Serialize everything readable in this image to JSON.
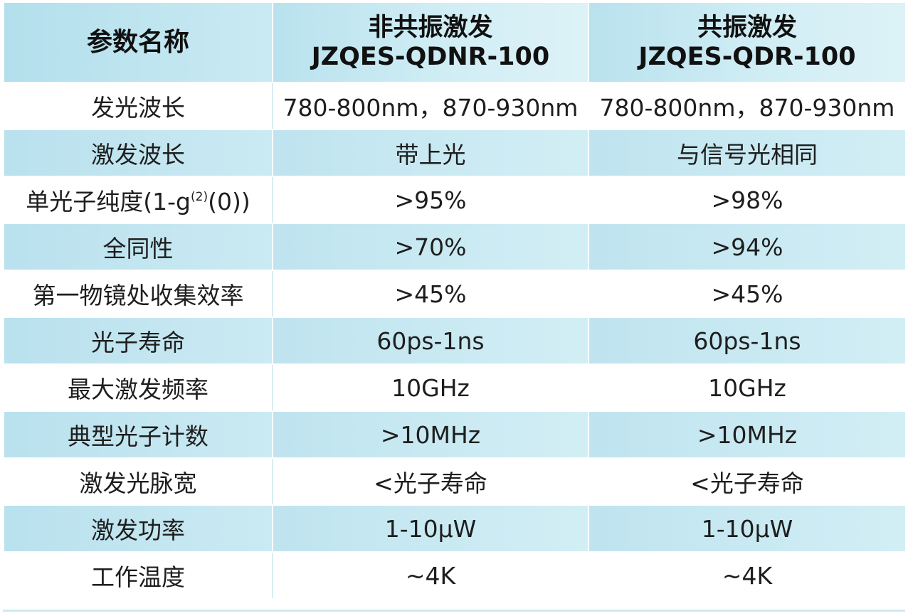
{
  "table": {
    "header": {
      "param_label": "参数名称",
      "col1_line1": "非共振激发",
      "col1_line2": "JZQES-QDNR-100",
      "col2_line1": "共振激发",
      "col2_line2": "JZQES-QDR-100"
    },
    "rows": [
      {
        "param": "发光波长",
        "v1": "780-800nm，870-930nm",
        "v2": "780-800nm，870-930nm"
      },
      {
        "param": "激发波长",
        "v1": "带上光",
        "v2": "与信号光相同"
      },
      {
        "param_pre": "单光子纯度(1-g",
        "param_sup": "(2)",
        "param_post": "(0))",
        "v1": ">95%",
        "v2": ">98%"
      },
      {
        "param": "全同性",
        "v1": ">70%",
        "v2": ">94%"
      },
      {
        "param": "第一物镜处收集效率",
        "v1": ">45%",
        "v2": ">45%"
      },
      {
        "param": "光子寿命",
        "v1": "60ps-1ns",
        "v2": "60ps-1ns"
      },
      {
        "param": "最大激发频率",
        "v1": "10GHz",
        "v2": "10GHz"
      },
      {
        "param": "典型光子计数",
        "v1": ">10MHz",
        "v2": ">10MHz"
      },
      {
        "param": "激发光脉宽",
        "v1": "<光子寿命",
        "v2": "<光子寿命"
      },
      {
        "param": "激发功率",
        "v1": "1-10μW",
        "v2": "1-10μW"
      },
      {
        "param": "工作温度",
        "v1": "~4K",
        "v2": "~4K"
      }
    ]
  },
  "colors": {
    "header_bg": "#c9eaf3",
    "stripe_bg": "#c8e8f1",
    "row_bg": "#ffffff",
    "text": "#1e1e1e"
  }
}
